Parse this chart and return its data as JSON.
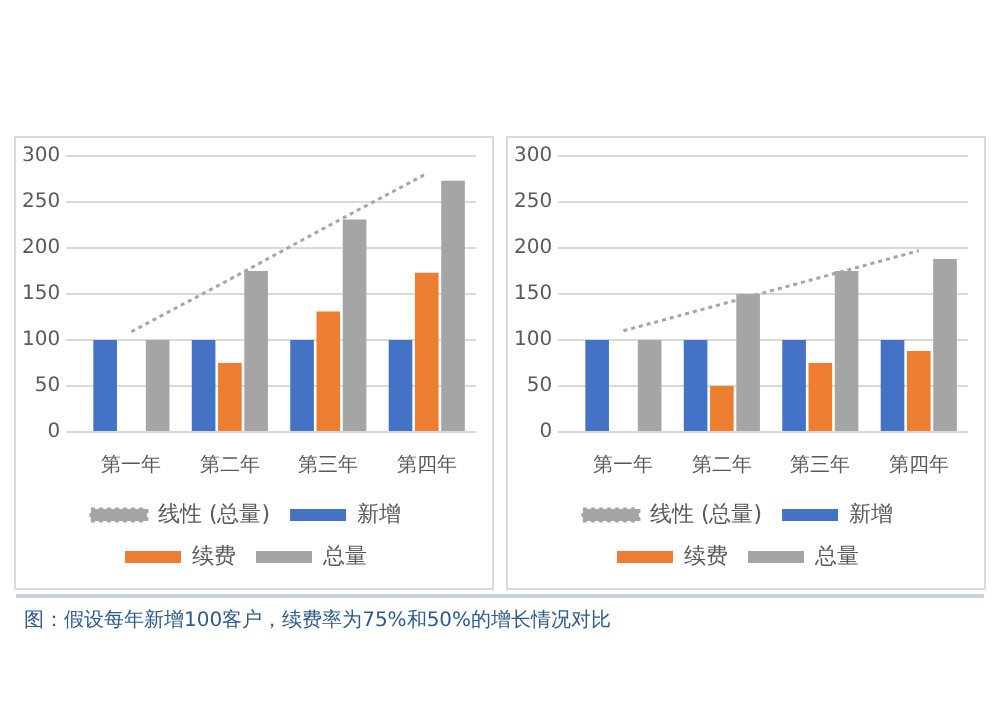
{
  "chart_data": [
    {
      "type": "bar",
      "categories": [
        "第一年",
        "第二年",
        "第三年",
        "第四年"
      ],
      "ylim": [
        0,
        300
      ],
      "yticks": [
        0,
        50,
        100,
        150,
        200,
        250,
        300
      ],
      "grid": "y",
      "legend": "bottom",
      "series": [
        {
          "name": "新增",
          "color": "#4472c4",
          "values": [
            100,
            100,
            100,
            100
          ]
        },
        {
          "name": "续费",
          "color": "#ed7d31",
          "values": [
            0,
            75,
            131,
            173
          ]
        },
        {
          "name": "总量",
          "color": "#a5a5a5",
          "values": [
            100,
            175,
            231,
            273
          ]
        },
        {
          "name": "线性 (总量)",
          "type": "line",
          "color": "#a5a5a5",
          "line_style": "dotted",
          "marker": "none",
          "values": [
            109,
            166,
            224,
            281
          ]
        }
      ],
      "annotations": [
        "图：假设每年新增100客户，续费率为75%和50%的增长情况对比"
      ]
    },
    {
      "type": "bar",
      "categories": [
        "第一年",
        "第二年",
        "第三年",
        "第四年"
      ],
      "ylim": [
        0,
        300
      ],
      "yticks": [
        0,
        50,
        100,
        150,
        200,
        250,
        300
      ],
      "grid": "y",
      "legend": "bottom",
      "series": [
        {
          "name": "新增",
          "color": "#4472c4",
          "values": [
            100,
            100,
            100,
            100
          ]
        },
        {
          "name": "续费",
          "color": "#ed7d31",
          "values": [
            0,
            50,
            75,
            88
          ]
        },
        {
          "name": "总量",
          "color": "#a5a5a5",
          "values": [
            100,
            150,
            175,
            188
          ]
        },
        {
          "name": "线性 (总量)",
          "type": "line",
          "color": "#a5a5a5",
          "line_style": "dotted",
          "marker": "none",
          "values": [
            110,
            139,
            168,
            197
          ]
        }
      ]
    }
  ]
}
